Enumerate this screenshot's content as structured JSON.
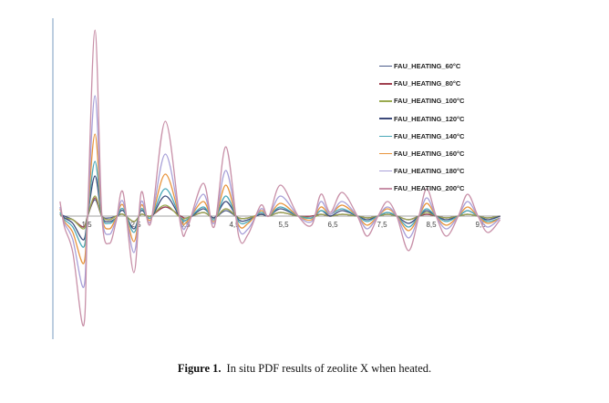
{
  "chart_data": {
    "type": "line",
    "title": "",
    "xlabel": "",
    "ylabel": "",
    "x_ticks": [
      "1,5",
      "2,5",
      "3,5",
      "4,5",
      "5,5",
      "6,5",
      "7,5",
      "8,5",
      "9,5"
    ],
    "x_tick_values": [
      1.5,
      2.5,
      3.5,
      4.5,
      5.5,
      6.5,
      7.5,
      8.5,
      9.5
    ],
    "xlim": [
      0.96,
      9.9
    ],
    "ylim": [
      -65,
      105
    ],
    "legend_position": "top-right",
    "x": [
      0.96,
      1.05,
      1.22,
      1.44,
      1.52,
      1.67,
      1.81,
      1.96,
      2.1,
      2.24,
      2.46,
      2.61,
      2.8,
      3.1,
      3.41,
      3.54,
      3.87,
      4.09,
      4.33,
      4.59,
      4.78,
      5.04,
      5.2,
      5.44,
      5.8,
      6.07,
      6.26,
      6.45,
      6.69,
      7.0,
      7.2,
      7.42,
      7.61,
      7.8,
      8.04,
      8.25,
      8.41,
      8.6,
      8.81,
      9.05,
      9.24,
      9.45,
      9.65,
      9.9
    ],
    "series": [
      {
        "name": "FAU_HEATING_60°C",
        "color": "#4a5a8a",
        "values": [
          1,
          0,
          -2,
          -6,
          0,
          9,
          0,
          -1,
          0,
          1,
          -3,
          1,
          0,
          5,
          0,
          -1,
          2,
          -1,
          3,
          -1,
          -1,
          1,
          0,
          2,
          0,
          0,
          1,
          0,
          1,
          0,
          -1,
          0,
          1,
          0,
          -2,
          0,
          1,
          0,
          -1,
          0,
          1,
          0,
          -1,
          0
        ]
      },
      {
        "name": "FAU_HEATING_80°C",
        "color": "#a04050",
        "values": [
          1,
          -1,
          -2,
          -6,
          0,
          10,
          0,
          -2,
          0,
          1,
          -3,
          1,
          0,
          5,
          0,
          -1,
          2,
          -1,
          4,
          -1,
          -1,
          1,
          0,
          2,
          0,
          0,
          1,
          0,
          1,
          0,
          -1,
          0,
          1,
          0,
          -2,
          0,
          1,
          0,
          -1,
          0,
          1,
          0,
          -1,
          0
        ]
      },
      {
        "name": "FAU_HEATING_100°C",
        "color": "#9aaa50",
        "values": [
          1,
          -1,
          -2,
          -7,
          0,
          11,
          0,
          -2,
          0,
          1,
          -3,
          1,
          0,
          6,
          -1,
          -1,
          2,
          -1,
          4,
          -1,
          -1,
          1,
          0,
          2,
          0,
          -1,
          1,
          0,
          1,
          0,
          -1,
          0,
          1,
          0,
          -2,
          0,
          2,
          0,
          -1,
          0,
          1,
          0,
          -1,
          0
        ]
      },
      {
        "name": "FAU_HEATING_120°C",
        "color": "#3c4a7a",
        "values": [
          2,
          -1,
          -4,
          -13,
          0,
          22,
          0,
          -3,
          -1,
          3,
          -7,
          3,
          -1,
          11,
          -1,
          -2,
          4,
          -1,
          8,
          -2,
          -2,
          1,
          0,
          4,
          0,
          -1,
          3,
          0,
          3,
          0,
          -2,
          0,
          2,
          0,
          -4,
          0,
          3,
          0,
          -2,
          0,
          3,
          0,
          -2,
          0
        ]
      },
      {
        "name": "FAU_HEATING_140°C",
        "color": "#4aa8b8",
        "values": [
          2,
          -2,
          -6,
          -17,
          0,
          30,
          0,
          -4,
          -1,
          4,
          -9,
          4,
          -1,
          15,
          -1,
          -2,
          5,
          -2,
          11,
          -3,
          -3,
          2,
          0,
          5,
          0,
          -1,
          3,
          1,
          4,
          0,
          -3,
          0,
          2,
          0,
          -6,
          0,
          4,
          0,
          -3,
          0,
          3,
          0,
          -3,
          -1
        ]
      },
      {
        "name": "FAU_HEATING_160°C",
        "color": "#e8943c",
        "values": [
          4,
          -3,
          -9,
          -26,
          0,
          45,
          0,
          -7,
          -1,
          6,
          -14,
          6,
          -2,
          23,
          -2,
          -3,
          8,
          -3,
          17,
          -5,
          -4,
          3,
          0,
          7,
          0,
          -2,
          5,
          1,
          6,
          0,
          -5,
          0,
          4,
          0,
          -8,
          0,
          7,
          0,
          -5,
          0,
          5,
          0,
          -4,
          -1
        ]
      },
      {
        "name": "FAU_HEATING_180°C",
        "color": "#a8a0d8",
        "values": [
          5,
          -4,
          -13,
          -39,
          0,
          66,
          0,
          -10,
          -2,
          8,
          -20,
          8,
          -3,
          34,
          -3,
          -5,
          12,
          -4,
          25,
          -7,
          -7,
          4,
          0,
          11,
          0,
          -3,
          8,
          1,
          8,
          0,
          -7,
          0,
          5,
          0,
          -12,
          0,
          10,
          0,
          -7,
          0,
          8,
          0,
          -6,
          -1
        ]
      },
      {
        "name": "FAU_HEATING_200°C",
        "color": "#c890a8",
        "values": [
          8,
          -6,
          -20,
          -60,
          0,
          102,
          0,
          -15,
          -3,
          13,
          -31,
          13,
          -4,
          52,
          -5,
          -7,
          18,
          -6,
          38,
          -11,
          -10,
          6,
          0,
          17,
          0,
          -5,
          12,
          2,
          13,
          0,
          -11,
          0,
          8,
          0,
          -19,
          0,
          15,
          0,
          -11,
          0,
          12,
          0,
          -9,
          -2
        ]
      }
    ]
  },
  "caption": {
    "label": "Figure 1.",
    "text": "In situ PDF results of zeolite X when heated."
  }
}
